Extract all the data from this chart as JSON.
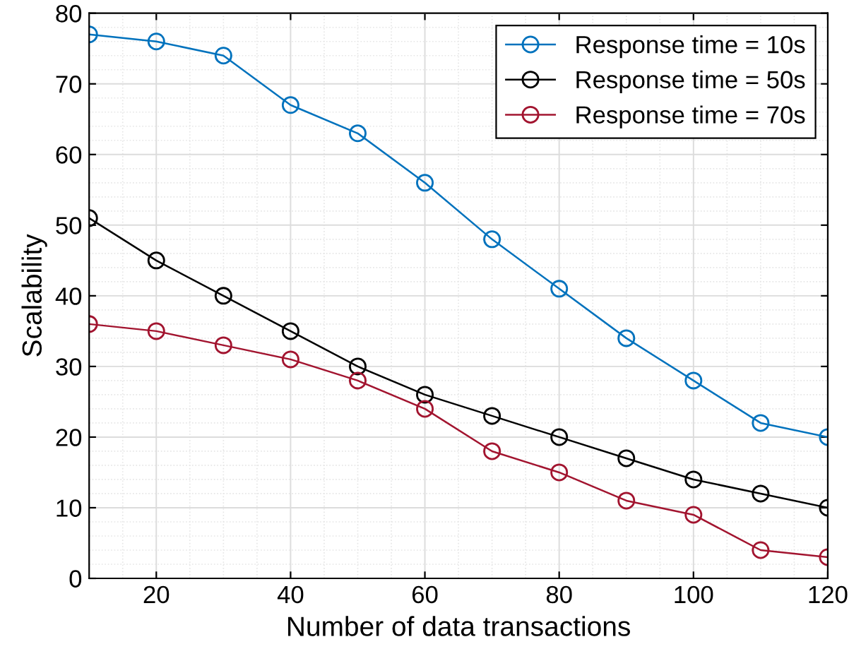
{
  "chart_data": {
    "type": "line",
    "xlabel": "Number of data transactions",
    "ylabel": "Scalability",
    "x": [
      10,
      20,
      30,
      40,
      50,
      60,
      70,
      80,
      90,
      100,
      110,
      120
    ],
    "series": [
      {
        "name": "Response time = 10s",
        "color": "#0072bd",
        "values": [
          77,
          76,
          74,
          67,
          63,
          56,
          48,
          41,
          34,
          28,
          22,
          20
        ]
      },
      {
        "name": "Response time = 50s",
        "color": "#000000",
        "values": [
          51,
          45,
          40,
          35,
          30,
          26,
          23,
          20,
          17,
          14,
          12,
          10
        ]
      },
      {
        "name": "Response time = 70s",
        "color": "#a2142f",
        "values": [
          36,
          35,
          33,
          31,
          28,
          24,
          18,
          15,
          11,
          9,
          4,
          3
        ]
      }
    ],
    "xlim": [
      10,
      120
    ],
    "xticks": [
      20,
      40,
      60,
      80,
      100,
      120
    ],
    "ylim": [
      0,
      80
    ],
    "yticks": [
      0,
      10,
      20,
      30,
      40,
      50,
      60,
      70,
      80
    ],
    "grid": true,
    "legend": "top right",
    "marker": "circle",
    "line_style": "solid"
  }
}
